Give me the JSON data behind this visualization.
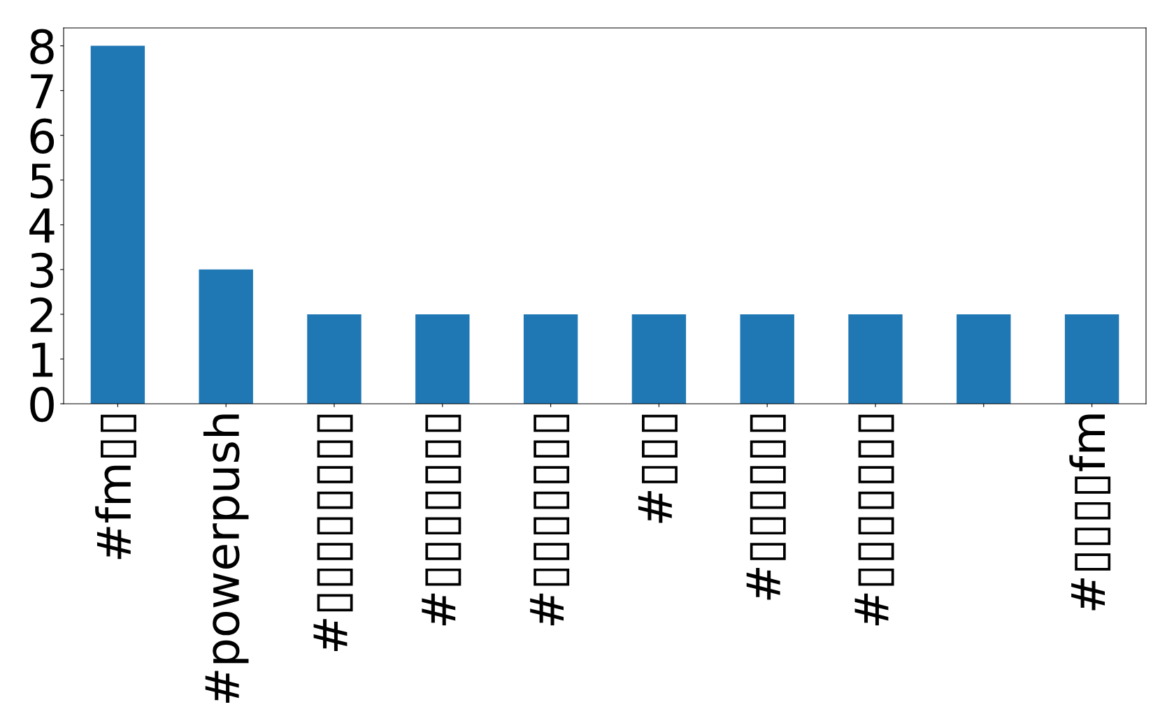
{
  "chart_data": {
    "type": "bar",
    "categories": [
      "#fm▯▯",
      "#powerpush",
      "#▯▯▯▯▯▯▯▯",
      "#▯▯▯▯▯▯▯",
      "#▯▯▯▯▯▯▯",
      "#▯▯▯",
      "#▯▯▯▯▯▯",
      "#▯▯▯▯▯▯▯",
      null,
      "#▯▯▯▯fm"
    ],
    "values": [
      8,
      3,
      2,
      2,
      2,
      2,
      2,
      2,
      2,
      2
    ],
    "color": "#1f77b4",
    "ylim": [
      0,
      8.4
    ],
    "yticks": [
      0,
      1,
      2,
      3,
      4,
      5,
      6,
      7,
      8
    ],
    "grid": false,
    "legend": false
  }
}
